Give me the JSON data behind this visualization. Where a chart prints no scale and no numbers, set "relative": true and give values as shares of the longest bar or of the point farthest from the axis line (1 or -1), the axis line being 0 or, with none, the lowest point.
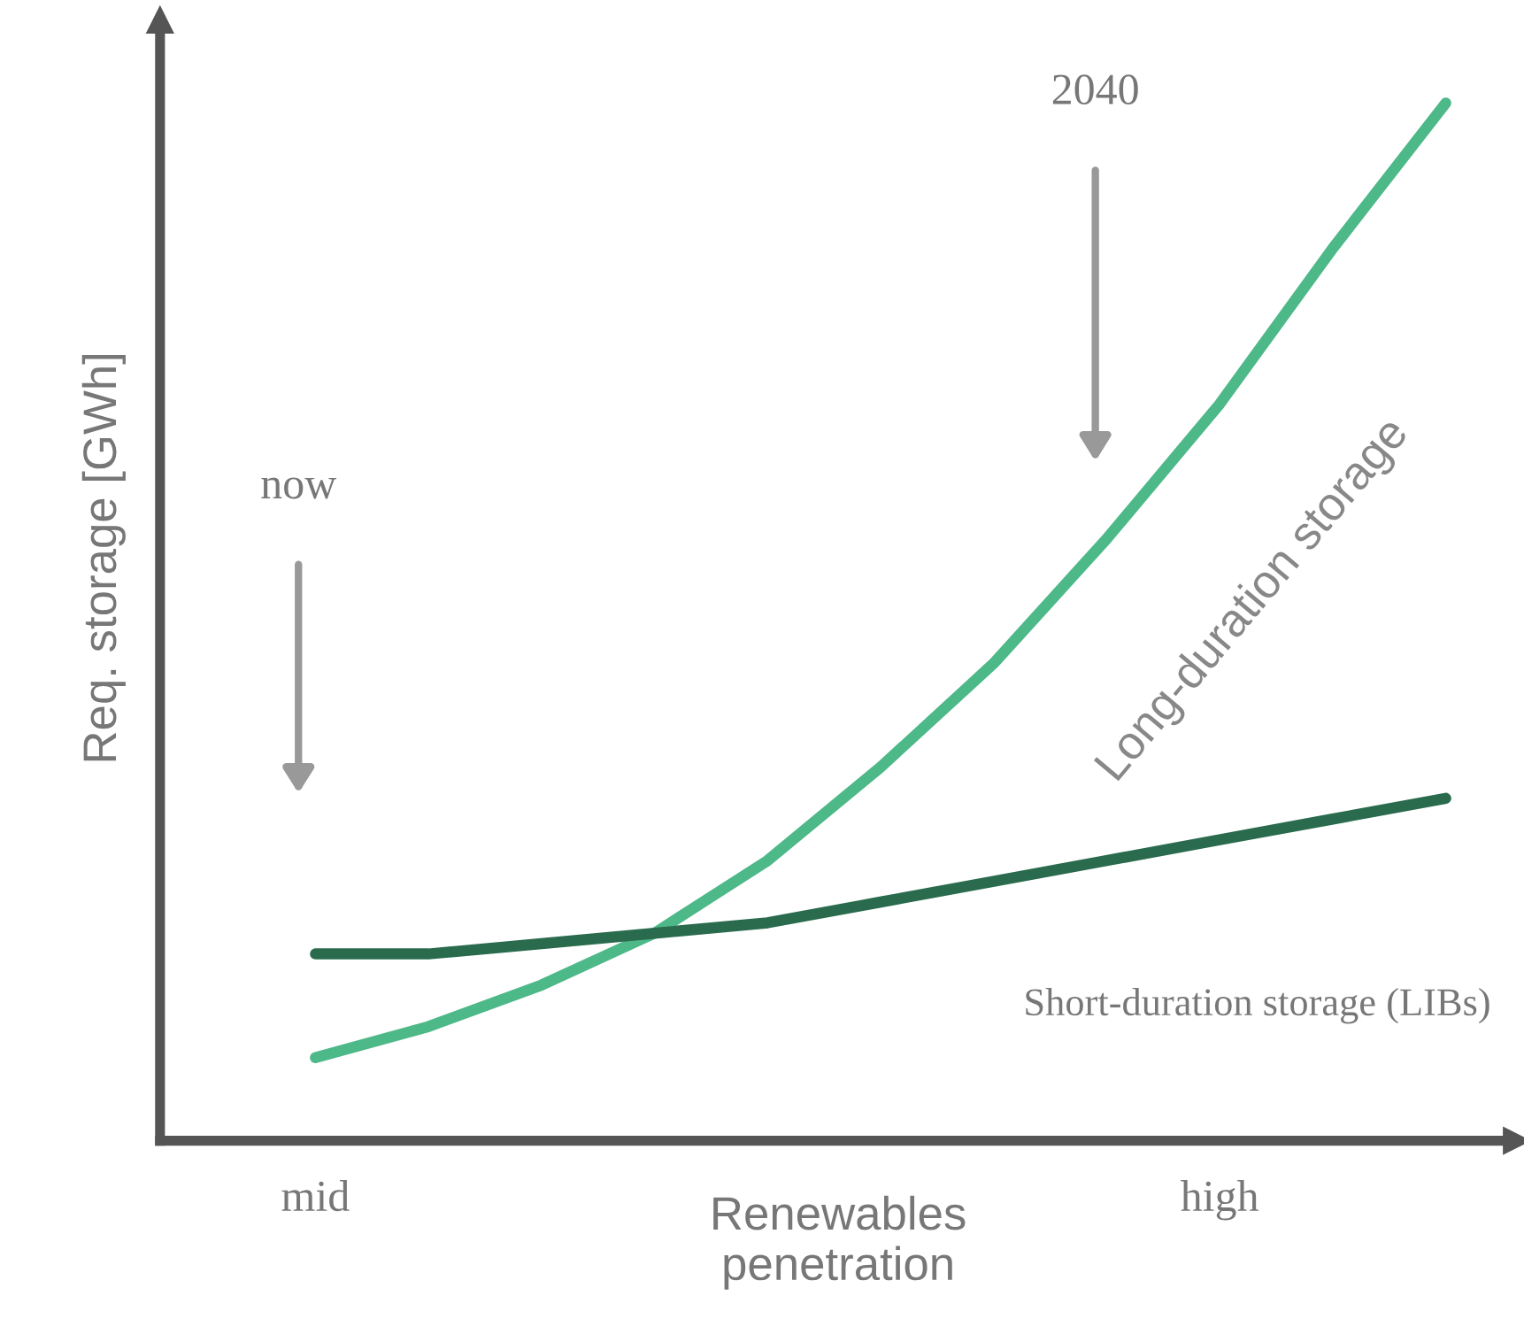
{
  "chart_data": {
    "type": "line",
    "relative": true,
    "xlabel": "Renewables\npenetration",
    "ylabel": "Req. storage [GWh]",
    "categories": [
      "mid",
      null,
      null,
      null,
      null,
      null,
      null,
      null,
      "high",
      null,
      null
    ],
    "series": [
      {
        "name": "Long-duration storage",
        "color": "#4db888",
        "values": [
          0.08,
          0.11,
          0.15,
          0.2,
          0.27,
          0.36,
          0.46,
          0.58,
          0.71,
          0.86,
          1.0
        ]
      },
      {
        "name": "Short-duration storage (LIBs)",
        "color": "#2a6b4e",
        "values": [
          0.18,
          0.18,
          0.19,
          0.2,
          0.21,
          0.23,
          0.25,
          0.27,
          0.29,
          0.31,
          0.33
        ]
      }
    ],
    "annotations": [
      "now",
      "2040"
    ],
    "grid": false,
    "legend": false,
    "marker": "none",
    "line_style": "solid"
  }
}
